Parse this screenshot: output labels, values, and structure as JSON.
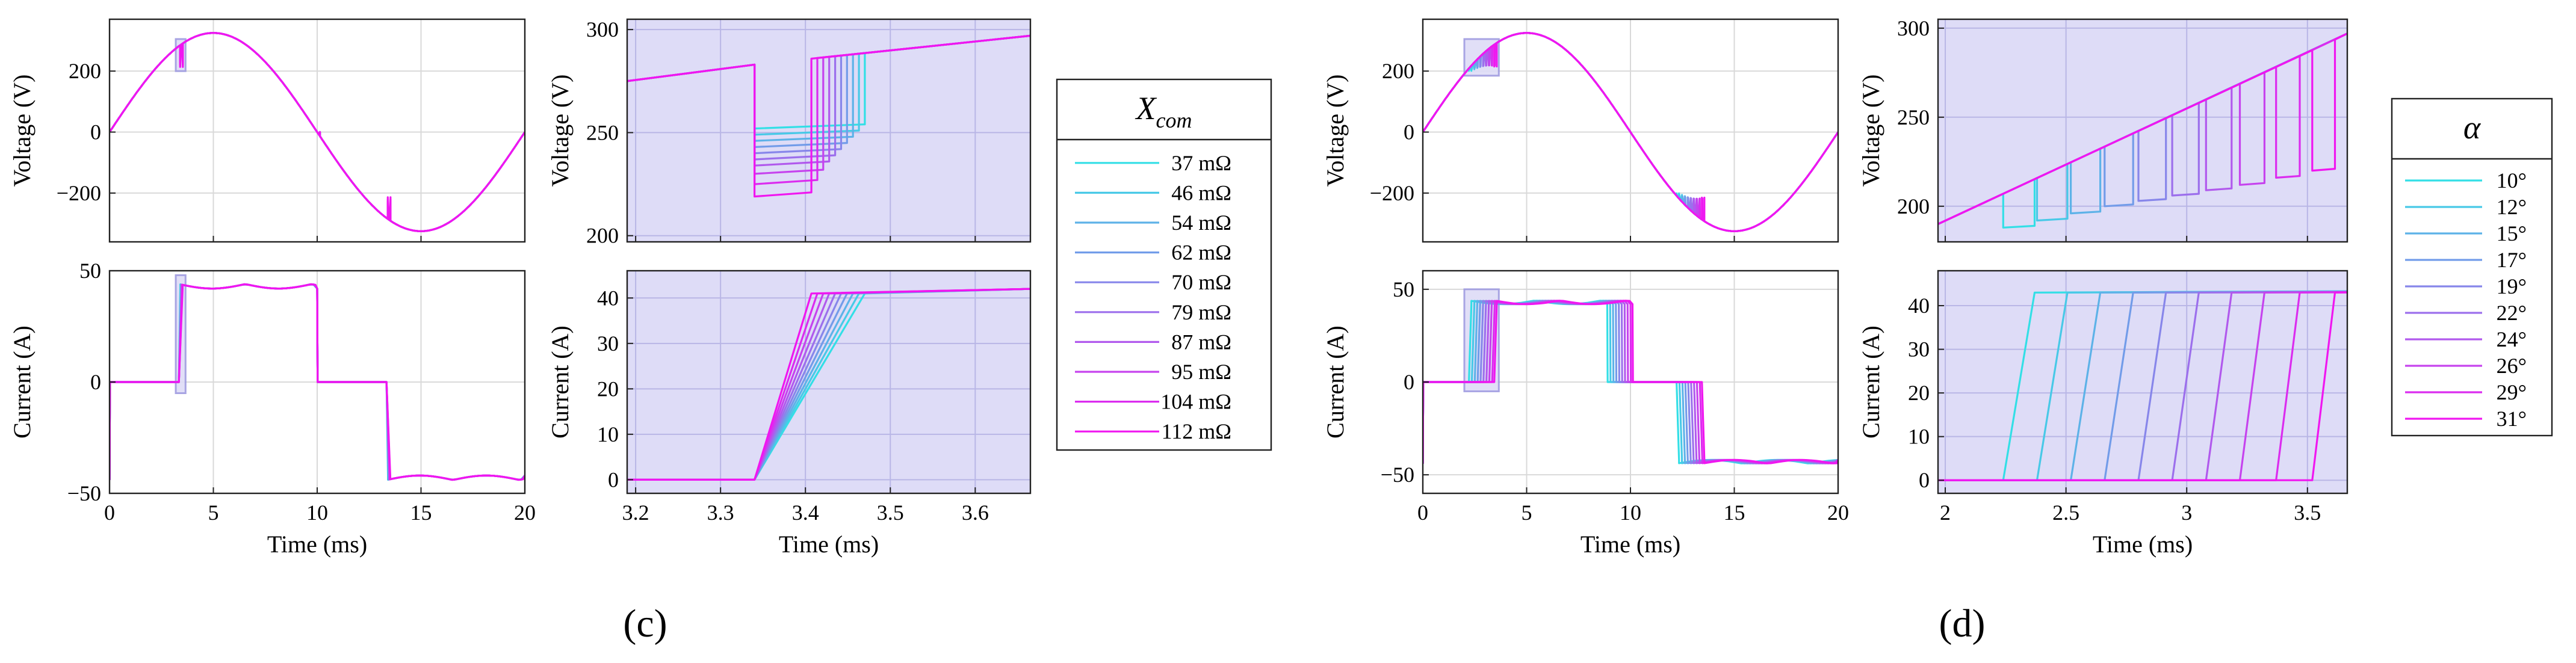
{
  "figure": {
    "panel_labels": [
      "(c)",
      "(d)"
    ],
    "colors": {
      "start": "#33dfe6",
      "end": "#f016f0",
      "zoom_fill": "#dedcf7",
      "zoom_edge": "#9f9be0"
    }
  },
  "chart_data": [
    {
      "id": "c-voltage",
      "type": "line",
      "panel": "c",
      "zoom": false,
      "title": "",
      "xlabel": "",
      "ylabel": "Voltage (V)",
      "xlim": [
        0,
        20
      ],
      "ylim": [
        -360,
        370
      ],
      "xticks": [
        0,
        5,
        10,
        15,
        20
      ],
      "xtick_labels": [
        "",
        "",
        "",
        "",
        ""
      ],
      "yticks": [
        -200,
        0,
        200
      ],
      "ytick_labels": [
        "−200",
        "0",
        "200"
      ],
      "model": "voltage_sine",
      "amplitude": 325,
      "period_ms": 20,
      "notch_x": [
        3.4,
        10.0,
        13.4
      ],
      "series_param": [
        37,
        46,
        54,
        62,
        70,
        79,
        87,
        95,
        104,
        112
      ],
      "zoom_box": {
        "x": [
          3.19,
          3.66
        ],
        "y": [
          200,
          305
        ]
      }
    },
    {
      "id": "c-current",
      "type": "line",
      "panel": "c",
      "zoom": false,
      "title": "",
      "xlabel": "Time (ms)",
      "ylabel": "Current (A)",
      "xlim": [
        0,
        20
      ],
      "ylim": [
        -50,
        50
      ],
      "xticks": [
        0,
        5,
        10,
        15,
        20
      ],
      "xtick_labels": [
        "0",
        "5",
        "10",
        "15",
        "20"
      ],
      "yticks": [
        -50,
        0,
        50
      ],
      "ytick_labels": [
        "−50",
        "0",
        "50"
      ],
      "model": "current_block",
      "rise_x": [
        3.34,
        3.47
      ],
      "fall_x": [
        10.0,
        10.1
      ],
      "neg_rise_x": [
        13.34,
        13.47
      ],
      "series_param": [
        37,
        46,
        54,
        62,
        70,
        79,
        87,
        95,
        104,
        112
      ],
      "zoom_box": {
        "x": [
          3.19,
          3.66
        ],
        "y": [
          -5,
          48
        ]
      }
    },
    {
      "id": "c-voltage-zoom",
      "type": "line",
      "panel": "c",
      "zoom": true,
      "title": "",
      "xlabel": "",
      "ylabel": "Voltage (V)",
      "xlim": [
        3.19,
        3.665
      ],
      "ylim": [
        197,
        305
      ],
      "xticks": [
        3.2,
        3.3,
        3.4,
        3.5,
        3.6
      ],
      "xtick_labels": [
        "",
        "",
        "",
        "",
        ""
      ],
      "yticks": [
        200,
        250,
        300
      ],
      "ytick_labels": [
        "200",
        "250",
        "300"
      ],
      "model": "voltage_notch_fixed_start",
      "drop_x": 3.34,
      "v_before": 283,
      "notch_depth": [
        252,
        249,
        246,
        243,
        240,
        237,
        234,
        230,
        225,
        219
      ],
      "notch_end_x": [
        3.47,
        3.463,
        3.456,
        3.449,
        3.442,
        3.435,
        3.428,
        3.421,
        3.414,
        3.407
      ],
      "series_param": [
        37,
        46,
        54,
        62,
        70,
        79,
        87,
        95,
        104,
        112
      ]
    },
    {
      "id": "c-current-zoom",
      "type": "line",
      "panel": "c",
      "zoom": true,
      "title": "",
      "xlabel": "Time (ms)",
      "ylabel": "Current (A)",
      "xlim": [
        3.19,
        3.665
      ],
      "ylim": [
        -3,
        46
      ],
      "xticks": [
        3.2,
        3.3,
        3.4,
        3.5,
        3.6
      ],
      "xtick_labels": [
        "3.2",
        "3.3",
        "3.4",
        "3.5",
        "3.6"
      ],
      "yticks": [
        0,
        10,
        20,
        30,
        40
      ],
      "ytick_labels": [
        "0",
        "10",
        "20",
        "30",
        "40"
      ],
      "model": "current_ramp_fixed_start",
      "start_x": 3.34,
      "i_max": 41,
      "end_x": [
        3.47,
        3.463,
        3.456,
        3.449,
        3.442,
        3.435,
        3.428,
        3.421,
        3.414,
        3.407
      ],
      "series_param": [
        37,
        46,
        54,
        62,
        70,
        79,
        87,
        95,
        104,
        112
      ]
    },
    {
      "id": "d-voltage",
      "type": "line",
      "panel": "d",
      "zoom": false,
      "title": "",
      "xlabel": "",
      "ylabel": "Voltage (V)",
      "xlim": [
        0,
        20
      ],
      "ylim": [
        -360,
        370
      ],
      "xticks": [
        0,
        5,
        10,
        15,
        20
      ],
      "xtick_labels": [
        "",
        "",
        "",
        "",
        ""
      ],
      "yticks": [
        -200,
        0,
        200
      ],
      "ytick_labels": [
        "−200",
        "0",
        "200"
      ],
      "model": "voltage_sine_multi",
      "amplitude": 325,
      "period_ms": 20,
      "notch_start_x": [
        2.22,
        2.36,
        2.5,
        2.64,
        2.78,
        2.92,
        3.06,
        3.2,
        3.34,
        3.44
      ],
      "series_param": [
        10,
        12,
        15,
        17,
        19,
        22,
        24,
        26,
        29,
        31
      ],
      "zoom_box": {
        "x": [
          2.0,
          3.66
        ],
        "y": [
          185,
          305
        ]
      }
    },
    {
      "id": "d-current",
      "type": "line",
      "panel": "d",
      "zoom": false,
      "title": "",
      "xlabel": "Time (ms)",
      "ylabel": "Current (A)",
      "xlim": [
        0,
        20
      ],
      "ylim": [
        -60,
        60
      ],
      "xticks": [
        0,
        5,
        10,
        15,
        20
      ],
      "xtick_labels": [
        "0",
        "5",
        "10",
        "15",
        "20"
      ],
      "yticks": [
        -50,
        0,
        50
      ],
      "ytick_labels": [
        "−50",
        "0",
        "50"
      ],
      "model": "current_block_multi",
      "rise_x": [
        2.22,
        2.36,
        2.5,
        2.64,
        2.78,
        2.92,
        3.06,
        3.2,
        3.34,
        3.44
      ],
      "series_param": [
        10,
        12,
        15,
        17,
        19,
        22,
        24,
        26,
        29,
        31
      ],
      "zoom_box": {
        "x": [
          2.0,
          3.66
        ],
        "y": [
          -5,
          50
        ]
      }
    },
    {
      "id": "d-voltage-zoom",
      "type": "line",
      "panel": "d",
      "zoom": true,
      "title": "",
      "xlabel": "",
      "ylabel": "Voltage (V)",
      "xlim": [
        1.97,
        3.665
      ],
      "ylim": [
        180,
        305
      ],
      "xticks": [
        2,
        2.5,
        3,
        3.5
      ],
      "xtick_labels": [
        "",
        "",
        "",
        ""
      ],
      "yticks": [
        200,
        250,
        300
      ],
      "ytick_labels": [
        "200",
        "250",
        "300"
      ],
      "model": "voltage_notch_shifting",
      "notch_start_x": [
        2.24,
        2.38,
        2.52,
        2.66,
        2.8,
        2.94,
        3.08,
        3.22,
        3.37,
        3.52
      ],
      "notch_width": [
        0.13,
        0.126,
        0.122,
        0.118,
        0.114,
        0.11,
        0.106,
        0.102,
        0.098,
        0.094
      ],
      "notch_v": [
        188,
        192,
        196,
        200,
        203,
        206,
        209,
        212,
        216,
        220
      ],
      "series_param": [
        10,
        12,
        15,
        17,
        19,
        22,
        24,
        26,
        29,
        31
      ]
    },
    {
      "id": "d-current-zoom",
      "type": "line",
      "panel": "d",
      "zoom": true,
      "title": "",
      "xlabel": "Time (ms)",
      "ylabel": "Current (A)",
      "xlim": [
        1.97,
        3.665
      ],
      "ylim": [
        -3,
        48
      ],
      "xticks": [
        2,
        2.5,
        3,
        3.5
      ],
      "xtick_labels": [
        "2",
        "2.5",
        "3",
        "3.5"
      ],
      "yticks": [
        0,
        10,
        20,
        30,
        40
      ],
      "ytick_labels": [
        "0",
        "10",
        "20",
        "30",
        "40"
      ],
      "model": "current_ramp_shifting",
      "start_x": [
        2.24,
        2.38,
        2.52,
        2.66,
        2.8,
        2.94,
        3.08,
        3.22,
        3.37,
        3.52
      ],
      "ramp_width": [
        0.13,
        0.126,
        0.122,
        0.118,
        0.114,
        0.11,
        0.106,
        0.102,
        0.098,
        0.094
      ],
      "i_level": 43,
      "series_param": [
        10,
        12,
        15,
        17,
        19,
        22,
        24,
        26,
        29,
        31
      ]
    }
  ],
  "legends": [
    {
      "panel": "c",
      "title_main": "X",
      "title_sub": "com",
      "entries": [
        "37 mΩ",
        "46 mΩ",
        "54 mΩ",
        "62 mΩ",
        "70 mΩ",
        "79 mΩ",
        "87 mΩ",
        "95 mΩ",
        "104 mΩ",
        "112 mΩ"
      ]
    },
    {
      "panel": "d",
      "title_main": "α",
      "title_sub": "",
      "entries": [
        "10°",
        "12°",
        "15°",
        "17°",
        "19°",
        "22°",
        "24°",
        "26°",
        "29°",
        "31°"
      ]
    }
  ]
}
